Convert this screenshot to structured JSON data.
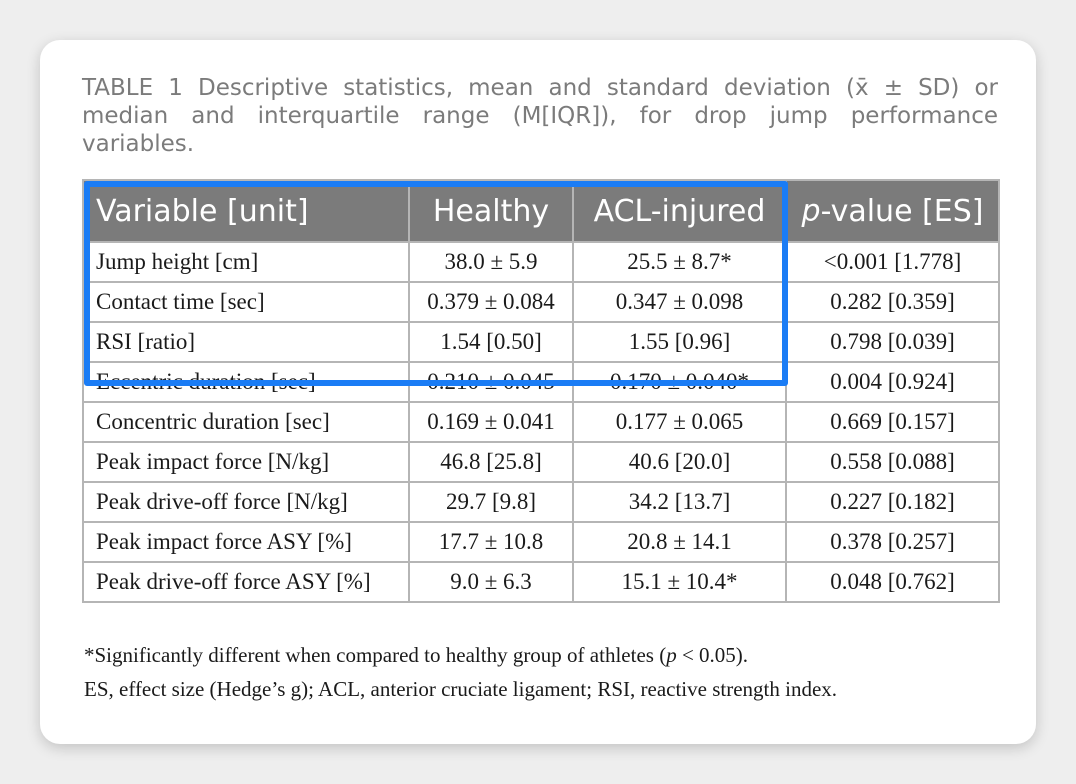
{
  "caption": {
    "label": "TABLE 1",
    "text": "Descriptive statistics, mean and standard deviation (x̄ ± SD) or median and interquartile range (M[IQR]), for drop jump performance variables."
  },
  "table": {
    "headers": {
      "variable": "Variable [unit]",
      "healthy": "Healthy",
      "acl": "ACL-injured",
      "p_italic": "p",
      "p_rest": "-value [ES]"
    },
    "rows": [
      {
        "variable": "Jump height [cm]",
        "healthy": "38.0 ± 5.9",
        "acl": "25.5 ± 8.7*",
        "p": "<0.001 [1.778]"
      },
      {
        "variable": "Contact time [sec]",
        "healthy": "0.379 ± 0.084",
        "acl": "0.347 ± 0.098",
        "p": "0.282 [0.359]"
      },
      {
        "variable": "RSI [ratio]",
        "healthy": "1.54 [0.50]",
        "acl": "1.55 [0.96]",
        "p": "0.798 [0.039]"
      },
      {
        "variable": "Eccentric duration [sec]",
        "healthy": "0.210 ± 0.045",
        "acl": "0.170 ± 0.040*",
        "p": "0.004 [0.924]"
      },
      {
        "variable": "Concentric duration [sec]",
        "healthy": "0.169 ± 0.041",
        "acl": "0.177 ± 0.065",
        "p": "0.669 [0.157]"
      },
      {
        "variable": "Peak impact force [N/kg]",
        "healthy": "46.8 [25.8]",
        "acl": "40.6 [20.0]",
        "p": "0.558 [0.088]"
      },
      {
        "variable": "Peak drive-off force [N/kg]",
        "healthy": "29.7 [9.8]",
        "acl": "34.2 [13.7]",
        "p": "0.227 [0.182]"
      },
      {
        "variable": "Peak impact force ASY [%]",
        "healthy": "17.7 ± 10.8",
        "acl": "20.8 ± 14.1",
        "p": "0.378 [0.257]"
      },
      {
        "variable": "Peak drive-off force ASY [%]",
        "healthy": "9.0 ± 6.3",
        "acl": "15.1 ± 10.4*",
        "p": "0.048 [0.762]"
      }
    ]
  },
  "footnotes": {
    "line1_before": "*Significantly different when compared to healthy group of athletes (",
    "line1_italic": "p",
    "line1_after": " < 0.05).",
    "line2": "ES, effect size (Hedge’s g); ACL, anterior cruciate ligament; RSI, reactive strength index."
  },
  "colors": {
    "header_bg": "#7b7b7b",
    "grid": "#b5b5b5",
    "highlight": "#1a7cf5",
    "caption_text": "#7b7b7b"
  }
}
